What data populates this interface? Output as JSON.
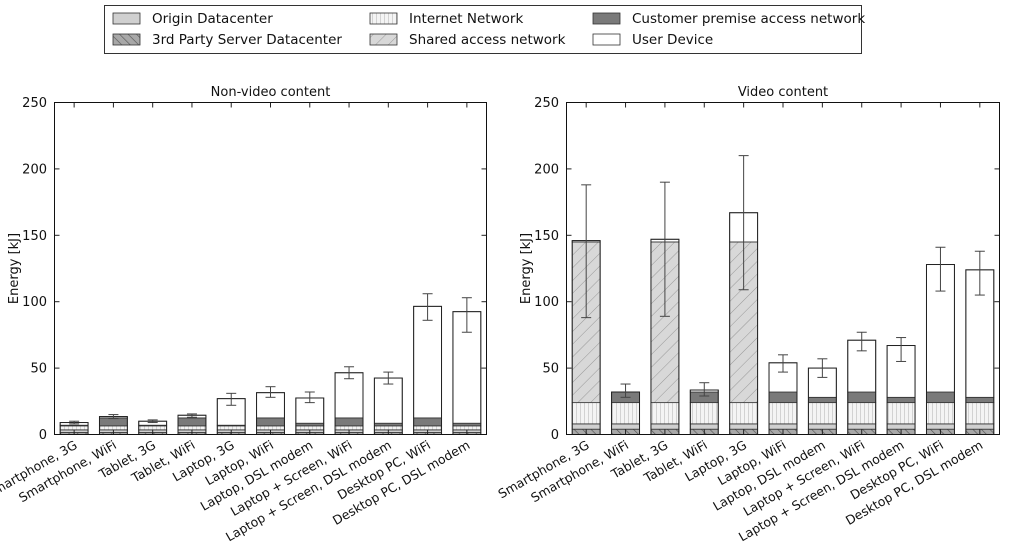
{
  "legend": {
    "items": [
      {
        "key": "origin_dc",
        "label": "Origin Datacenter",
        "fill": "#d0d0d0",
        "pattern": "none"
      },
      {
        "key": "third_party_dc",
        "label": "3rd Party Server Datacenter",
        "fill": "#a8a8a8",
        "pattern": "hatch-ne"
      },
      {
        "key": "internet",
        "label": "Internet Network",
        "fill": "#f4f4f4",
        "pattern": "vlines"
      },
      {
        "key": "shared_access",
        "label": "Shared access network",
        "fill": "#d8d8d8",
        "pattern": "hatch-nw"
      },
      {
        "key": "customer_premise",
        "label": "Customer premise access network",
        "fill": "#7a7a7a",
        "pattern": "none"
      },
      {
        "key": "user_device",
        "label": "User Device",
        "fill": "#ffffff",
        "pattern": "none"
      }
    ]
  },
  "chart_data": [
    {
      "type": "bar",
      "stacked": true,
      "title": "Non-video content",
      "ylabel": "Energy [kJ]",
      "ylim": [
        0,
        250
      ],
      "yticks": [
        0,
        50,
        100,
        150,
        200,
        250
      ],
      "categories": [
        "Smartphone, 3G",
        "Smartphone, WiFi",
        "Tablet, 3G",
        "Tablet, WiFi",
        "Laptop, 3G",
        "Laptop, WiFi",
        "Laptop, DSL modem",
        "Laptop + Screen, WiFi",
        "Laptop + Screen, DSL modem",
        "Desktop PC, WiFi",
        "Desktop PC, DSL modem"
      ],
      "series": [
        {
          "key": "third_party_dc",
          "values": [
            1.5,
            1.5,
            1.5,
            1.5,
            1.5,
            1.5,
            1.5,
            1.5,
            1.5,
            1.5,
            1.5
          ]
        },
        {
          "key": "origin_dc",
          "values": [
            2,
            2,
            2,
            2,
            2,
            2,
            2,
            2,
            2,
            2,
            2
          ]
        },
        {
          "key": "internet",
          "values": [
            3,
            3,
            3,
            3,
            3,
            3,
            3,
            3,
            3,
            3,
            3
          ]
        },
        {
          "key": "shared_access",
          "values": [
            0.5,
            0,
            0.5,
            0,
            0.5,
            0,
            0,
            0,
            0,
            0,
            0
          ]
        },
        {
          "key": "customer_premise",
          "values": [
            0,
            6,
            0,
            6,
            0,
            6,
            2,
            6,
            2,
            6,
            2
          ]
        },
        {
          "key": "user_device",
          "values": [
            2,
            1,
            3,
            2,
            20,
            19,
            19,
            34,
            34,
            84,
            84
          ]
        }
      ],
      "totals": [
        9,
        13.5,
        10,
        14.5,
        27,
        31.5,
        27.5,
        46.5,
        42.5,
        96.5,
        92.5
      ],
      "error": [
        [
          8,
          10
        ],
        [
          12,
          15
        ],
        [
          9,
          11
        ],
        [
          13,
          15.5
        ],
        [
          22,
          31
        ],
        [
          28,
          36
        ],
        [
          24,
          32
        ],
        [
          42,
          51
        ],
        [
          38,
          47
        ],
        [
          86,
          106
        ],
        [
          77,
          103
        ]
      ]
    },
    {
      "type": "bar",
      "stacked": true,
      "title": "Video content",
      "ylabel": "Energy [kJ]",
      "ylim": [
        0,
        250
      ],
      "yticks": [
        0,
        50,
        100,
        150,
        200,
        250
      ],
      "categories": [
        "Smartphone, 3G",
        "Smartphone, WiFi",
        "Tablet, 3G",
        "Tablet, WiFi",
        "Laptop, 3G",
        "Laptop, WiFi",
        "Laptop, DSL modem",
        "Laptop + Screen, WiFi",
        "Laptop + Screen, DSL modem",
        "Desktop PC, WiFi",
        "Desktop PC, DSL modem"
      ],
      "series": [
        {
          "key": "third_party_dc",
          "values": [
            4,
            4,
            4,
            4,
            4,
            4,
            4,
            4,
            4,
            4,
            4
          ]
        },
        {
          "key": "origin_dc",
          "values": [
            4,
            4,
            4,
            4,
            4,
            4,
            4,
            4,
            4,
            4,
            4
          ]
        },
        {
          "key": "internet",
          "values": [
            16,
            16,
            16,
            16,
            16,
            16,
            16,
            16,
            16,
            16,
            16
          ]
        },
        {
          "key": "shared_access",
          "values": [
            121,
            0,
            121,
            0,
            121,
            0,
            0,
            0,
            0,
            0,
            0
          ]
        },
        {
          "key": "customer_premise",
          "values": [
            0,
            8,
            0,
            8,
            0,
            8,
            4,
            8,
            4,
            8,
            4
          ]
        },
        {
          "key": "user_device",
          "values": [
            1,
            0,
            2,
            1.5,
            22,
            22,
            22,
            39,
            39,
            96,
            96
          ]
        }
      ],
      "totals": [
        146,
        32,
        147,
        33.5,
        167,
        54,
        50,
        71,
        67,
        128,
        124
      ],
      "error": [
        [
          88,
          188
        ],
        [
          28,
          38
        ],
        [
          89,
          190
        ],
        [
          29,
          39
        ],
        [
          109,
          210
        ],
        [
          47,
          60
        ],
        [
          43,
          57
        ],
        [
          63,
          77
        ],
        [
          55,
          73
        ],
        [
          108,
          141
        ],
        [
          105,
          138
        ]
      ]
    }
  ]
}
